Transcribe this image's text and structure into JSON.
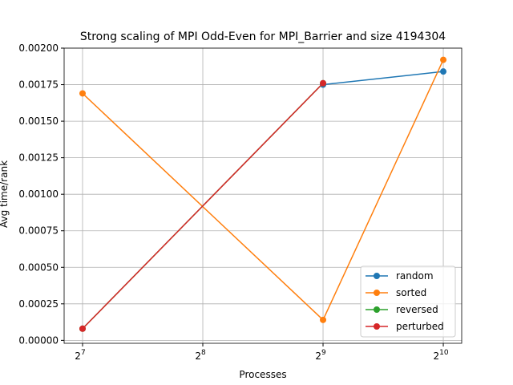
{
  "chart_data": {
    "type": "line",
    "title": "Strong scaling of MPI Odd-Even for MPI_Barrier and size 4194304",
    "x_label": "Processes",
    "y_label": "Avg time/rank",
    "x": [
      128,
      512,
      1024
    ],
    "x_scale": "log2",
    "series": [
      {
        "name": "random",
        "color": "#1f77b4",
        "values": [
          null,
          0.00175,
          0.00184
        ]
      },
      {
        "name": "sorted",
        "color": "#ff7f0e",
        "values": [
          0.00169,
          0.00014,
          0.00192
        ]
      },
      {
        "name": "reversed",
        "color": "#2ca02c",
        "values": [
          8e-05,
          0.00176,
          null
        ]
      },
      {
        "name": "perturbed",
        "color": "#d62728",
        "values": [
          8e-05,
          0.00176,
          null
        ]
      }
    ],
    "xlim": [
      115.1,
      1138.6
    ],
    "ylim": [
      -2e-05,
      0.002
    ],
    "xticks": [
      {
        "value": 128,
        "label": "2",
        "exponent": "7"
      },
      {
        "value": 256,
        "label": "2",
        "exponent": "8"
      },
      {
        "value": 512,
        "label": "2",
        "exponent": "9"
      },
      {
        "value": 1024,
        "label": "2",
        "exponent": "10"
      }
    ],
    "yticks": [
      {
        "value": 0,
        "label": "0.00000"
      },
      {
        "value": 0.00025,
        "label": "0.00025"
      },
      {
        "value": 0.0005,
        "label": "0.00050"
      },
      {
        "value": 0.00075,
        "label": "0.00075"
      },
      {
        "value": 0.001,
        "label": "0.00100"
      },
      {
        "value": 0.00125,
        "label": "0.00125"
      },
      {
        "value": 0.0015,
        "label": "0.00150"
      },
      {
        "value": 0.00175,
        "label": "0.00175"
      },
      {
        "value": 0.002,
        "label": "0.00200"
      }
    ],
    "grid": true,
    "legend": "lower right"
  }
}
